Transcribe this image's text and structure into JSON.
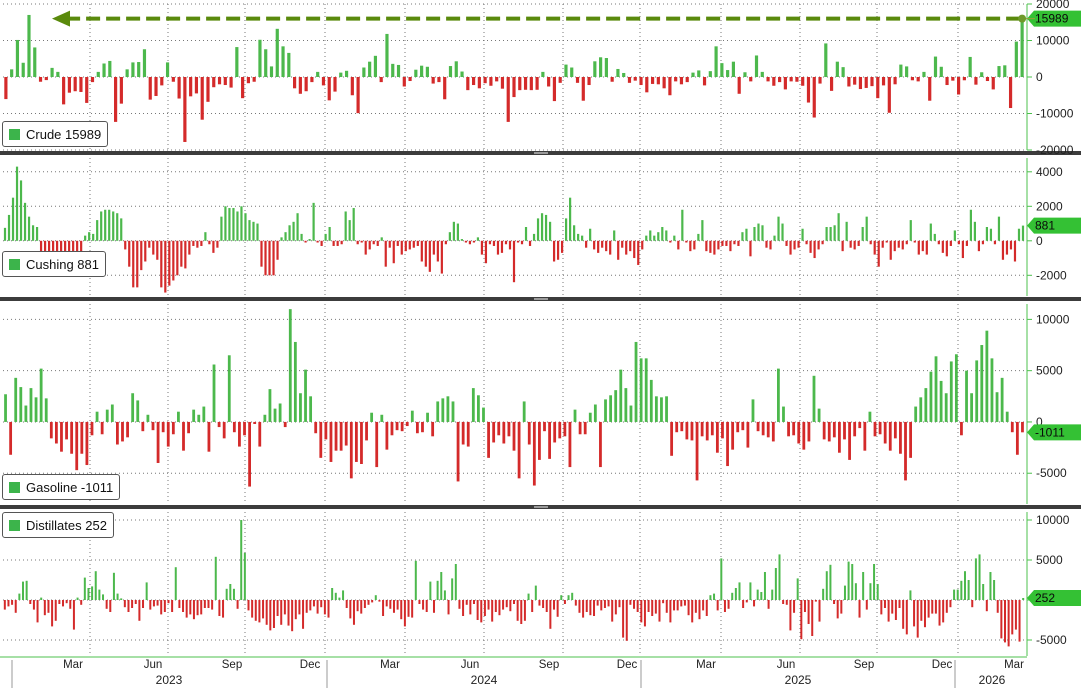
{
  "colors": {
    "positive": "#4cb84c",
    "negative": "#d42a2a",
    "highlight": "#5a8a0c",
    "label_bg": "#34c134",
    "axis_line": "#4cc04c",
    "separator": "#3c3c3c",
    "grid": "#777777"
  },
  "chart_data": [
    {
      "type": "bar",
      "name": "Crude",
      "legend": "Crude 15989",
      "last_value": "15989",
      "ylim": [
        -20000,
        20000
      ],
      "ticks": [
        "20000",
        "10000",
        "0",
        "-10000",
        "-20000"
      ],
      "tick_values": [
        20000,
        10000,
        0,
        -10000,
        -20000
      ],
      "annotation": "arrow from latest value back to early 2023 peak",
      "values": [
        -6051,
        2100,
        10150,
        3900,
        17000,
        8100,
        -1300,
        -850,
        2500,
        1400,
        -7500,
        -4300,
        -3900,
        -4100,
        -7100,
        -1400,
        1400,
        3700,
        4400,
        -12300,
        -7300,
        2100,
        4000,
        4100,
        7600,
        -6200,
        -5200,
        -2300,
        4000,
        -1300,
        -5900,
        -17800,
        -5300,
        -4500,
        -11700,
        -6800,
        -2800,
        -2000,
        -2200,
        -2900,
        8200,
        -5800,
        -1700,
        -1300,
        10200,
        7600,
        2900,
        13200,
        8400,
        6600,
        -3100,
        -4600,
        -3900,
        -1400,
        1400,
        -2300,
        -6400,
        -4000,
        1200,
        1700,
        -5000,
        -9900,
        2600,
        4200,
        5800,
        -1400,
        11800,
        3600,
        3300,
        -2600,
        -1100,
        2000,
        3100,
        2800,
        -1800,
        -1400,
        -6100,
        3000,
        4300,
        1500,
        -3600,
        -2200,
        -3100,
        -1700,
        -2400,
        -1200,
        -3200,
        -12300,
        -5500,
        -3600,
        -3500,
        -3600,
        -3500,
        1400,
        -2600,
        -6600,
        -1600,
        3400,
        2600,
        -1600,
        -6500,
        -2200,
        4300,
        5400,
        5200,
        -1300,
        2200,
        1100,
        -1600,
        -1000,
        -2200,
        -4200,
        -1900,
        -2000,
        -3100,
        -5000,
        -1200,
        -2000,
        -1400,
        1200,
        1800,
        -2300,
        1600,
        8400,
        3800,
        1900,
        4200,
        -4600,
        1300,
        -1200,
        5900,
        1400,
        -1200,
        -2400,
        -1400,
        -3400,
        -1200,
        -1300,
        -2400,
        -7000,
        -11100,
        -1800,
        9200,
        -3800,
        4200,
        2700,
        -2600,
        -2100,
        -3300,
        -3000,
        -2500,
        -5800,
        -2300,
        -9800,
        -2000,
        3400,
        2900,
        -900,
        -1200,
        1400,
        -6500,
        5600,
        2800,
        -2200,
        -1000,
        -4800,
        -900,
        5500,
        -2100,
        1300,
        -1100,
        -3400,
        3000,
        3200,
        -8500,
        9700,
        15989
      ]
    },
    {
      "type": "bar",
      "name": "Cushing",
      "legend": "Cushing 881",
      "last_value": "881",
      "ylim": [
        -3200,
        4800
      ],
      "ticks": [
        "4000",
        "2000",
        "0",
        "-2000"
      ],
      "tick_values": [
        4000,
        2000,
        0,
        -2000
      ],
      "values": [
        750,
        1500,
        2500,
        4300,
        3500,
        2200,
        1400,
        900,
        800,
        -700,
        -800,
        -800,
        -800,
        -900,
        -800,
        -700,
        -800,
        -600,
        -700,
        -600,
        300,
        500,
        400,
        1200,
        1700,
        1800,
        1800,
        1700,
        1600,
        1300,
        -500,
        -1500,
        -2700,
        -2700,
        -1700,
        -1200,
        -400,
        -800,
        -1100,
        -2700,
        -3000,
        -2600,
        -2300,
        -2000,
        -1500,
        -1600,
        -800,
        -300,
        -400,
        -300,
        500,
        -200,
        -700,
        -400,
        1400,
        2000,
        1900,
        1900,
        1700,
        2000,
        1600,
        1200,
        1100,
        1000,
        -1500,
        -2000,
        -2000,
        -2000,
        -1100,
        200,
        500,
        900,
        1100,
        1600,
        400,
        -100,
        100,
        2200,
        -100,
        -300,
        400,
        800,
        -300,
        -300,
        -200,
        1700,
        1200,
        1900,
        -200,
        -100,
        -800,
        -500,
        -200,
        -300,
        200,
        -1500,
        -400,
        -1300,
        -300,
        -800,
        -600,
        -500,
        -400,
        -300,
        -1200,
        -1500,
        -1800,
        -800,
        -1200,
        -1900,
        -200,
        500,
        1100,
        1000,
        100,
        -100,
        -200,
        -100,
        200,
        -800,
        -1300,
        -200,
        -300,
        -800,
        -700,
        -200,
        -500,
        -2400,
        -100,
        -200,
        800,
        -300,
        400,
        1300,
        1600,
        1500,
        1100,
        -1200,
        -1100,
        -700,
        1300,
        2500,
        900,
        400,
        300,
        -400,
        700,
        -500,
        -700,
        -400,
        -600,
        -800,
        600,
        -1100,
        -400,
        -800,
        -600,
        -1000,
        -1400,
        -500,
        300,
        600,
        300,
        500,
        800,
        600,
        -100,
        300,
        -500,
        1800,
        -100,
        -600,
        -500,
        400,
        1200,
        -600,
        -700,
        -800,
        -500,
        -300,
        -300,
        -600,
        -200,
        -300,
        500,
        700,
        -900,
        800,
        1000,
        900,
        -400,
        -500,
        300,
        1400,
        1000,
        -300,
        -800,
        -500,
        -400,
        700,
        -200,
        -700,
        -1000,
        -500,
        -200,
        800,
        800,
        900,
        1600,
        -600,
        1100,
        -400,
        -500,
        -300,
        800,
        1400,
        -200,
        -800,
        -1500,
        -400,
        -100,
        -1100,
        -600,
        -400,
        -500,
        -200,
        1200,
        -100,
        -800,
        -600,
        -800,
        1000,
        400,
        -200,
        -700,
        -900,
        -300,
        600,
        -200,
        -1000,
        -300,
        1800,
        1100,
        -600,
        -200,
        800,
        700,
        -200,
        1400,
        -1100,
        -800,
        -500,
        -1200,
        700,
        881
      ]
    },
    {
      "type": "bar",
      "name": "Gasoline",
      "legend": "Gasoline -1011",
      "last_value": "-1011",
      "ylim": [
        -8000,
        11500
      ],
      "ticks": [
        "10000",
        "5000",
        "0",
        "-5000"
      ],
      "tick_values": [
        10000,
        5000,
        0,
        -5000
      ],
      "values": [
        2700,
        -3200,
        4300,
        3400,
        1600,
        3300,
        2400,
        5200,
        2300,
        -1600,
        -2100,
        -2900,
        -1700,
        -3100,
        -4700,
        -3100,
        -4200,
        -1300,
        1000,
        -1200,
        1200,
        1700,
        -2200,
        -1900,
        -1500,
        2800,
        2100,
        -900,
        700,
        -800,
        -4000,
        -1000,
        -2400,
        -1200,
        1000,
        -2800,
        -1100,
        1200,
        700,
        1500,
        -2900,
        5600,
        -500,
        -1600,
        6500,
        -1000,
        -2400,
        -1300,
        -6300,
        -200,
        -2400,
        700,
        3200,
        1300,
        1800,
        -500,
        11000,
        7800,
        2800,
        5100,
        2500,
        -1100,
        -3500,
        -1700,
        -3900,
        -2800,
        -2800,
        -2300,
        -5500,
        -3900,
        -4100,
        -1800,
        900,
        -4400,
        700,
        -2700,
        -1300,
        -800,
        -900,
        -400,
        1100,
        -1100,
        -1000,
        900,
        -1400,
        2000,
        2300,
        2500,
        2000,
        -5800,
        -2200,
        -2400,
        3300,
        2600,
        1400,
        -3500,
        -2000,
        -1300,
        -2100,
        -1400,
        -2800,
        -5500,
        2000,
        -2200,
        -6200,
        -3700,
        -900,
        -3600,
        -2000,
        -1600,
        -1400,
        -4400,
        1200,
        -1200,
        -1200,
        900,
        1700,
        -4400,
        2200,
        2600,
        3100,
        5100,
        3300,
        1600,
        7800,
        6200,
        6200,
        4100,
        2500,
        2400,
        2500,
        -3300,
        -1000,
        -900,
        -1700,
        -1800,
        -5700,
        -1400,
        -1800,
        -1300,
        -3000,
        -1600,
        -4300,
        -2700,
        -1000,
        -800,
        -2500,
        2200,
        -900,
        -1300,
        -1500,
        -1900,
        5200,
        1500,
        -1400,
        -1300,
        -2100,
        -2700,
        -1900,
        4500,
        1300,
        -1700,
        -1900,
        -1500,
        -3000,
        -1700,
        -3700,
        -1400,
        -600,
        -2800,
        1000,
        -1400,
        -1200,
        -2100,
        -2800,
        -1600,
        -3100,
        -5700,
        -3500,
        1500,
        2400,
        3300,
        4900,
        6400,
        4000,
        2800,
        5900,
        6600,
        -1300,
        5000,
        2800,
        6000,
        7500,
        8900,
        6200,
        2900,
        4300,
        1000,
        -1000,
        -3200,
        -1011
      ]
    },
    {
      "type": "bar",
      "name": "Distillates",
      "legend": "Distillates 252",
      "last_value": "252",
      "ylim": [
        -7000,
        11000
      ],
      "ticks": [
        "10000",
        "5000",
        "0",
        "-5000"
      ],
      "tick_values": [
        10000,
        5000,
        0,
        -5000
      ],
      "values": [
        -1200,
        -800,
        -600,
        -1600,
        800,
        2300,
        2400,
        -500,
        -1200,
        -2800,
        300,
        -1900,
        -1600,
        -3300,
        -2600,
        -500,
        -800,
        -400,
        -1100,
        -3700,
        300,
        -600,
        2800,
        1500,
        1700,
        3600,
        1300,
        700,
        -1100,
        -1500,
        3400,
        800,
        200,
        -900,
        -1500,
        -1000,
        -500,
        -2600,
        -1000,
        2200,
        -1200,
        -800,
        -700,
        -1800,
        -1500,
        -400,
        -1500,
        4100,
        -1000,
        -1500,
        -2200,
        -1800,
        -2400,
        -1900,
        -1800,
        -1000,
        -1000,
        -1200,
        5400,
        -2000,
        -2200,
        1400,
        2000,
        1400,
        -1100,
        10000,
        5900,
        -1300,
        -2200,
        -2600,
        -2800,
        -2300,
        -3100,
        -3800,
        -3500,
        -2000,
        -3100,
        -1800,
        -3200,
        -3900,
        -2400,
        -1800,
        -3600,
        -1600,
        -1300,
        -800,
        -1700,
        -900,
        -1800,
        -2200,
        1500,
        900,
        300,
        1200,
        -1000,
        -2300,
        -3100,
        -1400,
        -1700,
        -1000,
        -600,
        -300,
        600,
        -200,
        -2000,
        -800,
        -1100,
        -1600,
        -1200,
        -2400,
        -3300,
        -2100,
        -2200,
        4900,
        -500,
        -1200,
        -1500,
        2300,
        -1600,
        2400,
        3500,
        1200,
        -1800,
        2700,
        4500,
        -1100,
        -2000,
        -600,
        -1800,
        -500,
        -2500,
        -2800,
        -2000,
        -1200,
        -2700,
        -1500,
        -1900,
        -1200,
        -900,
        -1400,
        -500,
        -2600,
        -3000,
        -2600,
        800,
        -1500,
        1800,
        -700,
        -1000,
        -1500,
        -3600,
        -1200,
        -2100,
        600,
        -500,
        600,
        900,
        -700,
        -1600,
        -2200,
        -1500,
        -1900,
        -2000,
        -700,
        -1300,
        -1000,
        -800,
        -2700,
        -1800,
        -900,
        -4700,
        -5100,
        -600,
        -1100,
        -1500,
        -2800,
        -3300,
        -1500,
        -2000,
        -1700,
        -2700,
        -400,
        -1600,
        -2800,
        -1300,
        -1300,
        -800,
        -700,
        -1900,
        -2800,
        -1600,
        -2400,
        -1300,
        -2000,
        600,
        800,
        -1300,
        5200,
        -1500,
        -1100,
        900,
        1500,
        2200,
        -1000,
        -300,
        2200,
        -800,
        1300,
        1000,
        3500,
        -1100,
        1300,
        4000,
        5700,
        -500,
        -600,
        -3800,
        -1600,
        2700,
        -4900,
        -1500,
        -3000,
        -4500,
        -200,
        -2700,
        1400,
        3600,
        4400,
        -500,
        -2300,
        -1700,
        1800,
        4800,
        4500,
        2100,
        -2200,
        3500,
        -1200,
        2100,
        4500,
        2000,
        -1800,
        -1000,
        -2700,
        -1700,
        -2500,
        -1000,
        -3600,
        -4300,
        1200,
        -3300,
        -4700,
        -2600,
        -3400,
        -2200,
        -1700,
        -1700,
        -3200,
        -2800,
        -1600,
        -900,
        1300,
        1300,
        2400,
        3600,
        2500,
        -900,
        5200,
        5700,
        2000,
        -1400,
        3500,
        2500,
        -1600,
        -4800,
        -5300,
        -5800,
        -4300,
        -3700,
        -5200,
        252
      ]
    }
  ],
  "x_axis": {
    "months": [
      "Mar",
      "Jun",
      "Sep",
      "Dec",
      "Mar",
      "Jun",
      "Sep",
      "Dec",
      "Mar",
      "Jun",
      "Sep",
      "Dec",
      "Mar"
    ],
    "years": [
      "2023",
      "2024",
      "2025",
      "2026"
    ]
  }
}
